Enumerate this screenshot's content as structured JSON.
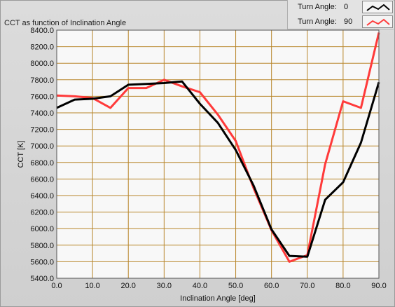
{
  "chart_data": {
    "type": "line",
    "title": "CCT as function of Inclination Angle",
    "xlabel": "Inclination Angle [deg]",
    "ylabel": "CCT [K]",
    "xlim": [
      0,
      90
    ],
    "ylim": [
      5400,
      8400
    ],
    "x_ticks": [
      0,
      10,
      20,
      30,
      40,
      50,
      60,
      70,
      80,
      90
    ],
    "x_tick_labels": [
      "0.0",
      "10.0",
      "20.0",
      "30.0",
      "40.0",
      "50.0",
      "60.0",
      "70.0",
      "80.0",
      "90.0"
    ],
    "y_ticks": [
      5400,
      5600,
      5800,
      6000,
      6200,
      6400,
      6600,
      6800,
      7000,
      7200,
      7400,
      7600,
      7800,
      8000,
      8200,
      8400
    ],
    "y_tick_labels": [
      "5400.0",
      "5600.0",
      "5800.0",
      "6000.0",
      "6200.0",
      "6400.0",
      "6600.0",
      "6800.0",
      "7000.0",
      "7200.0",
      "7400.0",
      "7600.0",
      "7800.0",
      "8000.0",
      "8200.0",
      "8400.0"
    ],
    "grid": true,
    "grid_color": "#b8862b",
    "plot_background": "#f8f8f8",
    "legend_placement": "top-right",
    "series": [
      {
        "legend_label": "Turn Angle:",
        "legend_value": "0",
        "color": "#000000",
        "x": [
          0,
          5,
          10,
          15,
          20,
          25,
          30,
          35,
          40,
          45,
          50,
          55,
          60,
          65,
          70,
          75,
          80,
          85,
          90
        ],
        "y": [
          7460,
          7560,
          7570,
          7600,
          7740,
          7750,
          7760,
          7780,
          7510,
          7280,
          6950,
          6520,
          5990,
          5670,
          5660,
          6350,
          6560,
          7040,
          7770
        ]
      },
      {
        "legend_label": "Turn Angle:",
        "legend_value": "90",
        "color": "#ff3a3a",
        "x": [
          0,
          5,
          10,
          15,
          20,
          25,
          30,
          35,
          40,
          45,
          50,
          55,
          60,
          65,
          70,
          75,
          80,
          85,
          90
        ],
        "y": [
          7610,
          7600,
          7580,
          7460,
          7700,
          7700,
          7800,
          7720,
          7650,
          7380,
          7060,
          6490,
          5980,
          5600,
          5680,
          6780,
          7540,
          7460,
          8370
        ]
      }
    ]
  }
}
